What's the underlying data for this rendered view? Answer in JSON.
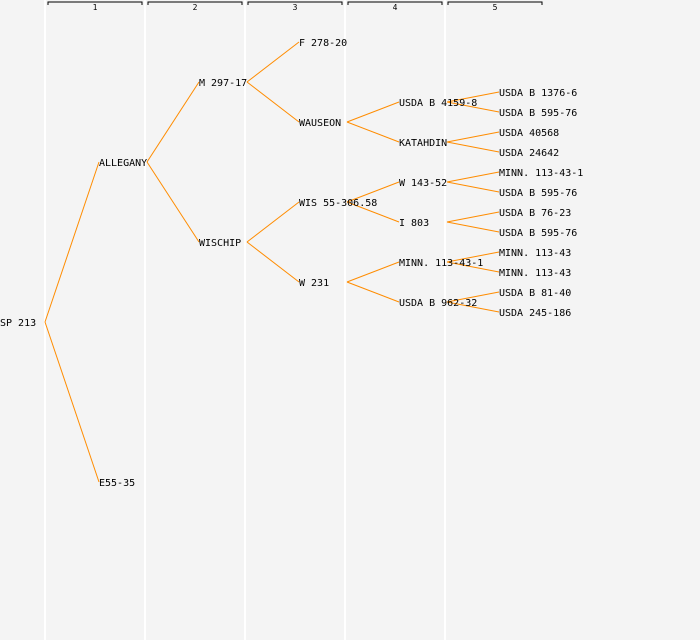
{
  "colors": {
    "background": "#f4f4f4",
    "column_line": "#ffffff",
    "edge": "#ff8c00",
    "text": "#000000"
  },
  "generations": [
    "1",
    "2",
    "3",
    "4",
    "5"
  ],
  "tree": {
    "label": "SP 213",
    "children": [
      {
        "label": "ALLEGANY",
        "children": [
          {
            "label": "M 297-17",
            "children": [
              {
                "label": "F 278-20"
              },
              {
                "label": "WAUSEON",
                "children": [
                  {
                    "label": "USDA B 4159-8",
                    "children": [
                      {
                        "label": "USDA B 1376-6"
                      },
                      {
                        "label": "USDA B 595-76"
                      }
                    ]
                  },
                  {
                    "label": "KATAHDIN",
                    "children": [
                      {
                        "label": "USDA 40568"
                      },
                      {
                        "label": "USDA 24642"
                      }
                    ]
                  }
                ]
              }
            ]
          },
          {
            "label": "WISCHIP",
            "children": [
              {
                "label": "WIS 55-306.58",
                "children": [
                  {
                    "label": "W 143-52",
                    "children": [
                      {
                        "label": "MINN. 113-43-1"
                      },
                      {
                        "label": "USDA B 595-76"
                      }
                    ]
                  },
                  {
                    "label": "I 803",
                    "children": [
                      {
                        "label": "USDA B 76-23"
                      },
                      {
                        "label": "USDA B 595-76"
                      }
                    ]
                  }
                ]
              },
              {
                "label": "W 231",
                "children": [
                  {
                    "label": "MINN. 113-43-1",
                    "children": [
                      {
                        "label": "MINN. 113-43"
                      },
                      {
                        "label": "MINN. 113-43"
                      }
                    ]
                  },
                  {
                    "label": "USDA B 962-32",
                    "children": [
                      {
                        "label": "USDA B 81-40"
                      },
                      {
                        "label": "USDA 245-186"
                      }
                    ]
                  }
                ]
              }
            ]
          }
        ]
      },
      {
        "label": "E55-35"
      }
    ]
  }
}
